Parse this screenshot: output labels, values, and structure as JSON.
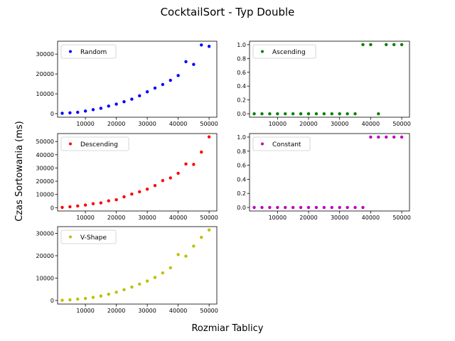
{
  "figure": {
    "title": "CocktailSort - Typ Double",
    "xlabel": "Rozmiar Tablicy",
    "ylabel": "Czas Sortowania (ms)"
  },
  "chart_data": [
    {
      "type": "scatter",
      "series": [
        {
          "name": "Random",
          "color": "#0000ff"
        }
      ],
      "x": [
        2500,
        5000,
        7500,
        10000,
        12500,
        15000,
        17500,
        20000,
        22500,
        25000,
        27500,
        30000,
        32500,
        35000,
        37500,
        40000,
        42500,
        45000,
        47500,
        50000
      ],
      "y": [
        200,
        400,
        700,
        1300,
        2000,
        2700,
        3800,
        4800,
        6000,
        7300,
        9000,
        11000,
        12900,
        14700,
        16800,
        19200,
        26200,
        24800,
        34600,
        33900
      ],
      "xlim": [
        1000,
        52500
      ],
      "ylim": [
        -1800,
        36500
      ],
      "xticks": [
        10000,
        20000,
        30000,
        40000,
        50000
      ],
      "yticks": [
        0,
        10000,
        20000,
        30000
      ],
      "legend": "top-left"
    },
    {
      "type": "scatter",
      "series": [
        {
          "name": "Ascending",
          "color": "#008000"
        }
      ],
      "x": [
        2500,
        5000,
        7500,
        10000,
        12500,
        15000,
        17500,
        20000,
        22500,
        25000,
        27500,
        30000,
        32500,
        35000,
        37500,
        40000,
        42500,
        45000,
        47500,
        50000
      ],
      "y": [
        0,
        0,
        0,
        0,
        0,
        0,
        0,
        0,
        0,
        0,
        0,
        0,
        0,
        0,
        1,
        1,
        0,
        1,
        1,
        1
      ],
      "xlim": [
        1000,
        52500
      ],
      "ylim": [
        -0.05,
        1.05
      ],
      "xticks": [
        10000,
        20000,
        30000,
        40000,
        50000
      ],
      "yticks": [
        0.0,
        0.2,
        0.4,
        0.6,
        0.8,
        1.0
      ],
      "legend": "top-left"
    },
    {
      "type": "scatter",
      "series": [
        {
          "name": "Descending",
          "color": "#ff0000"
        }
      ],
      "x": [
        2500,
        5000,
        7500,
        10000,
        12500,
        15000,
        17500,
        20000,
        22500,
        25000,
        27500,
        30000,
        32500,
        35000,
        37500,
        40000,
        42500,
        45000,
        47500,
        50000
      ],
      "y": [
        200,
        700,
        1300,
        2000,
        3000,
        3600,
        5200,
        6000,
        8200,
        10300,
        12000,
        14000,
        16700,
        20500,
        22500,
        26000,
        33000,
        32700,
        42000,
        53500
      ],
      "xlim": [
        1000,
        52500
      ],
      "ylim": [
        -2500,
        56000
      ],
      "xticks": [
        10000,
        20000,
        30000,
        40000,
        50000
      ],
      "yticks": [
        0,
        10000,
        20000,
        30000,
        40000,
        50000
      ],
      "legend": "top-left"
    },
    {
      "type": "scatter",
      "series": [
        {
          "name": "Constant",
          "color": "#bf00bf"
        }
      ],
      "x": [
        2500,
        5000,
        7500,
        10000,
        12500,
        15000,
        17500,
        20000,
        22500,
        25000,
        27500,
        30000,
        32500,
        35000,
        37500,
        40000,
        42500,
        45000,
        47500,
        50000
      ],
      "y": [
        0,
        0,
        0,
        0,
        0,
        0,
        0,
        0,
        0,
        0,
        0,
        0,
        0,
        0,
        0,
        1,
        1,
        1,
        1,
        1
      ],
      "xlim": [
        1000,
        52500
      ],
      "ylim": [
        -0.05,
        1.05
      ],
      "xticks": [
        10000,
        20000,
        30000,
        40000,
        50000
      ],
      "yticks": [
        0.0,
        0.2,
        0.4,
        0.6,
        0.8,
        1.0
      ],
      "legend": "top-left"
    },
    {
      "type": "scatter",
      "series": [
        {
          "name": "V-Shape",
          "color": "#bfbf00"
        }
      ],
      "x": [
        2500,
        5000,
        7500,
        10000,
        12500,
        15000,
        17500,
        20000,
        22500,
        25000,
        27500,
        30000,
        32500,
        35000,
        37500,
        40000,
        42500,
        45000,
        47500,
        50000
      ],
      "y": [
        100,
        300,
        600,
        900,
        1400,
        2000,
        2800,
        3700,
        4800,
        6000,
        7300,
        8700,
        10300,
        12300,
        14600,
        20500,
        19800,
        24300,
        28200,
        31500
      ],
      "xlim": [
        1000,
        52500
      ],
      "ylim": [
        -1600,
        33000
      ],
      "xticks": [
        10000,
        20000,
        30000,
        40000,
        50000
      ],
      "yticks": [
        0,
        10000,
        20000,
        30000
      ],
      "legend": "top-left"
    }
  ]
}
